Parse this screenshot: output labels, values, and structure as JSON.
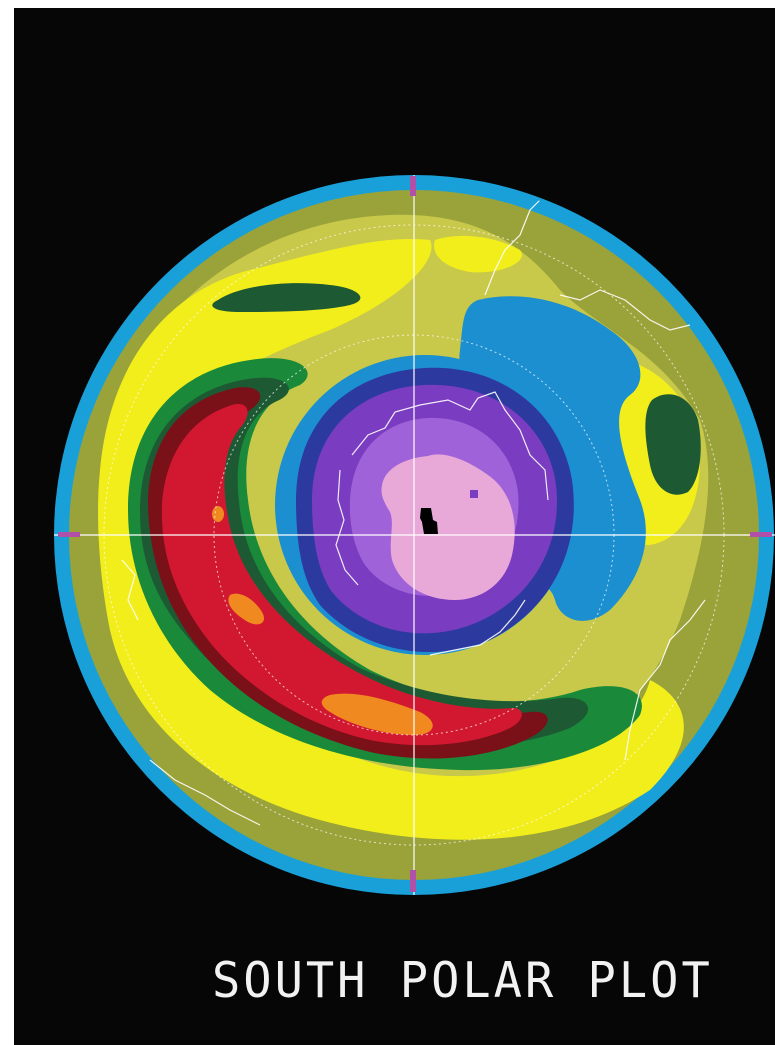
{
  "title": "SOUTH POLAR PLOT",
  "map": {
    "projection": "south polar stereographic",
    "colors": {
      "background": "#060606",
      "rim": "#1aa0d8",
      "olive": "#9aa23a",
      "light_olive": "#c8c84a",
      "yellow": "#f2ee1c",
      "dark_green": "#1d5a34",
      "green": "#1a8a3a",
      "dark_red": "#7a1018",
      "red": "#d21830",
      "orange": "#f08a20",
      "blue": "#1c8fd0",
      "dark_blue": "#2c3aa0",
      "purple": "#7a3cc0",
      "light_purple": "#a062d8",
      "pink": "#e8a8d8",
      "black": "#000000",
      "coastline": "#ffffff"
    }
  }
}
